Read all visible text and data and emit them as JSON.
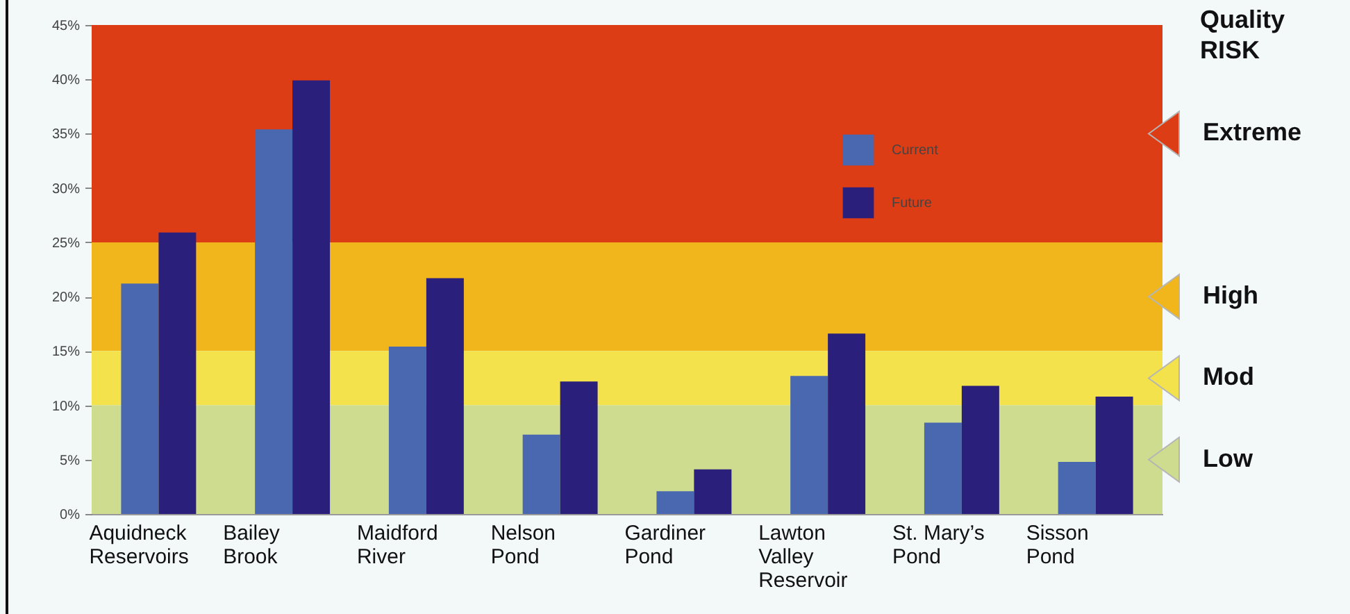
{
  "chart_data": {
    "type": "bar",
    "categories": [
      "Aquidneck\nReservoirs",
      "Bailey\nBrook",
      "Maidford\nRiver",
      "Nelson\nPond",
      "Gardiner\nPond",
      "Lawton\nValley\nReservoir",
      "St. Mary’s\nPond",
      "Sisson\nPond"
    ],
    "series": [
      {
        "name": "Current",
        "color": "#4a68b0",
        "values": [
          21.2,
          35.4,
          15.4,
          7.3,
          2.1,
          12.7,
          8.4,
          4.8
        ]
      },
      {
        "name": "Future",
        "color": "#2a1f7a",
        "values": [
          25.9,
          39.9,
          21.7,
          12.2,
          4.1,
          16.6,
          11.8,
          10.8
        ]
      }
    ],
    "ylim": [
      0,
      45
    ],
    "yticks": [
      {
        "value": 0,
        "label": "0%"
      },
      {
        "value": 5,
        "label": "5%"
      },
      {
        "value": 10,
        "label": "10%"
      },
      {
        "value": 15,
        "label": "15%"
      },
      {
        "value": 20,
        "label": "20%"
      },
      {
        "value": 25,
        "label": "25%"
      },
      {
        "value": 30,
        "label": "30%"
      },
      {
        "value": 35,
        "label": "35%"
      },
      {
        "value": 40,
        "label": "40%"
      },
      {
        "value": 45,
        "label": "45%"
      }
    ],
    "bands": [
      {
        "axis": "y",
        "from": 25,
        "to": 45,
        "label": "Extreme",
        "color": "#dd3d15"
      },
      {
        "axis": "y",
        "from": 15,
        "to": 25,
        "label": "High",
        "color": "#f0b61c"
      },
      {
        "axis": "y",
        "from": 10,
        "to": 15,
        "label": "Mod",
        "color": "#f3e24c"
      },
      {
        "axis": "y",
        "from": 0,
        "to": 10,
        "label": "Low",
        "color": "#cedc8f"
      }
    ],
    "annotations": [
      "Quality RISK"
    ],
    "legend": "top right"
  }
}
